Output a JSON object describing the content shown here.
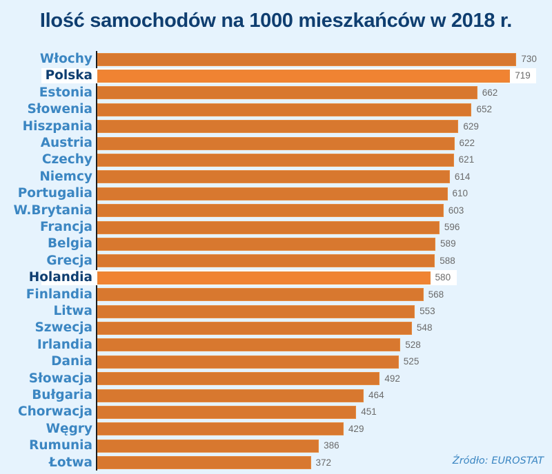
{
  "title": "Ilość samochodów na 1000 mieszkańców w 2018 r.",
  "source": "Źródło: EUROSTAT",
  "colors": {
    "background": "#e6f3fd",
    "bar": "#d8782f",
    "bar_highlight": "#f08332",
    "label": "#3b86c2",
    "label_highlight": "#0f3e70",
    "title": "#0f3e70",
    "value_text": "#6a6a6a"
  },
  "chart_data": {
    "type": "bar",
    "orientation": "horizontal",
    "title": "Ilość samochodów na 1000 mieszkańców w 2018 r.",
    "xlabel": "",
    "ylabel": "",
    "grid": false,
    "legend": null,
    "annotation": "Źródło: EUROSTAT",
    "categories": [
      "Włochy",
      "Polska",
      "Estonia",
      "Słowenia",
      "Hiszpania",
      "Austria",
      "Czechy",
      "Niemcy",
      "Portugalia",
      "W.Brytania",
      "Francja",
      "Belgia",
      "Grecja",
      "Holandia",
      "Finlandia",
      "Litwa",
      "Szwecja",
      "Irlandia",
      "Dania",
      "Słowacja",
      "Bułgaria",
      "Chorwacja",
      "Węgry",
      "Rumunia",
      "Łotwa"
    ],
    "values": [
      730,
      719,
      662,
      652,
      629,
      622,
      621,
      614,
      610,
      603,
      596,
      589,
      588,
      580,
      568,
      553,
      548,
      528,
      525,
      492,
      464,
      451,
      429,
      386,
      372
    ],
    "highlighted": [
      "Polska",
      "Holandia"
    ]
  },
  "rows": [
    {
      "label": "Włochy",
      "value": "730"
    },
    {
      "label": "Polska",
      "value": "719"
    },
    {
      "label": "Estonia",
      "value": "662"
    },
    {
      "label": "Słowenia",
      "value": "652"
    },
    {
      "label": "Hiszpania",
      "value": "629"
    },
    {
      "label": "Austria",
      "value": "622"
    },
    {
      "label": "Czechy",
      "value": "621"
    },
    {
      "label": "Niemcy",
      "value": "614"
    },
    {
      "label": "Portugalia",
      "value": "610"
    },
    {
      "label": "W.Brytania",
      "value": "603"
    },
    {
      "label": "Francja",
      "value": "596"
    },
    {
      "label": "Belgia",
      "value": "589"
    },
    {
      "label": "Grecja",
      "value": "588"
    },
    {
      "label": "Holandia",
      "value": "580"
    },
    {
      "label": "Finlandia",
      "value": "568"
    },
    {
      "label": "Litwa",
      "value": "553"
    },
    {
      "label": "Szwecja",
      "value": "548"
    },
    {
      "label": "Irlandia",
      "value": "528"
    },
    {
      "label": "Dania",
      "value": "525"
    },
    {
      "label": "Słowacja",
      "value": "492"
    },
    {
      "label": "Bułgaria",
      "value": "464"
    },
    {
      "label": "Chorwacja",
      "value": "451"
    },
    {
      "label": "Węgry",
      "value": "429"
    },
    {
      "label": "Rumunia",
      "value": "386"
    },
    {
      "label": "Łotwa",
      "value": "372"
    }
  ]
}
